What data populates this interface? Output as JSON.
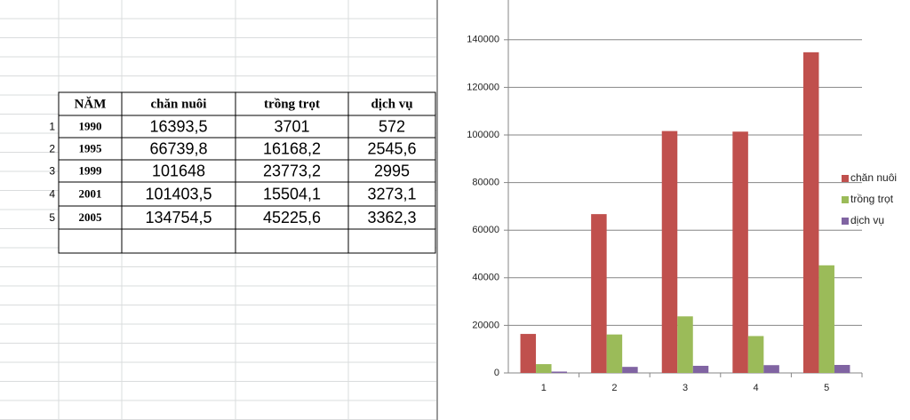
{
  "table": {
    "header": [
      "NĂM",
      "chăn nuôi",
      "trồng trọt",
      "dịch vụ"
    ],
    "row_numbers": [
      "1",
      "2",
      "3",
      "4",
      "5"
    ],
    "rows": [
      [
        "1990",
        "16393,5",
        "3701",
        "572"
      ],
      [
        "1995",
        "66739,8",
        "16168,2",
        "2545,6"
      ],
      [
        "1999",
        "101648",
        "23773,2",
        "2995"
      ],
      [
        "2001",
        "101403,5",
        "15504,1",
        "3273,1"
      ],
      [
        "2005",
        "134754,5",
        "45225,6",
        "3362,3"
      ]
    ]
  },
  "chart_data": {
    "type": "bar",
    "categories": [
      "1",
      "2",
      "3",
      "4",
      "5"
    ],
    "series": [
      {
        "name": "chăn nuôi",
        "color": "#c0504d",
        "values": [
          16393.5,
          66739.8,
          101648,
          101403.5,
          134754.5
        ]
      },
      {
        "name": "trồng trọt",
        "color": "#9bbb59",
        "values": [
          3701,
          16168.2,
          23773.2,
          15504.1,
          45225.6
        ]
      },
      {
        "name": "dịch vụ",
        "color": "#8064a2",
        "values": [
          572,
          2545.6,
          2995,
          3273.1,
          3362.3
        ]
      }
    ],
    "ylim": [
      0,
      150000
    ],
    "yticks": [
      0,
      20000,
      40000,
      60000,
      80000,
      100000,
      120000,
      140000
    ],
    "grid": true,
    "legend": "right"
  }
}
